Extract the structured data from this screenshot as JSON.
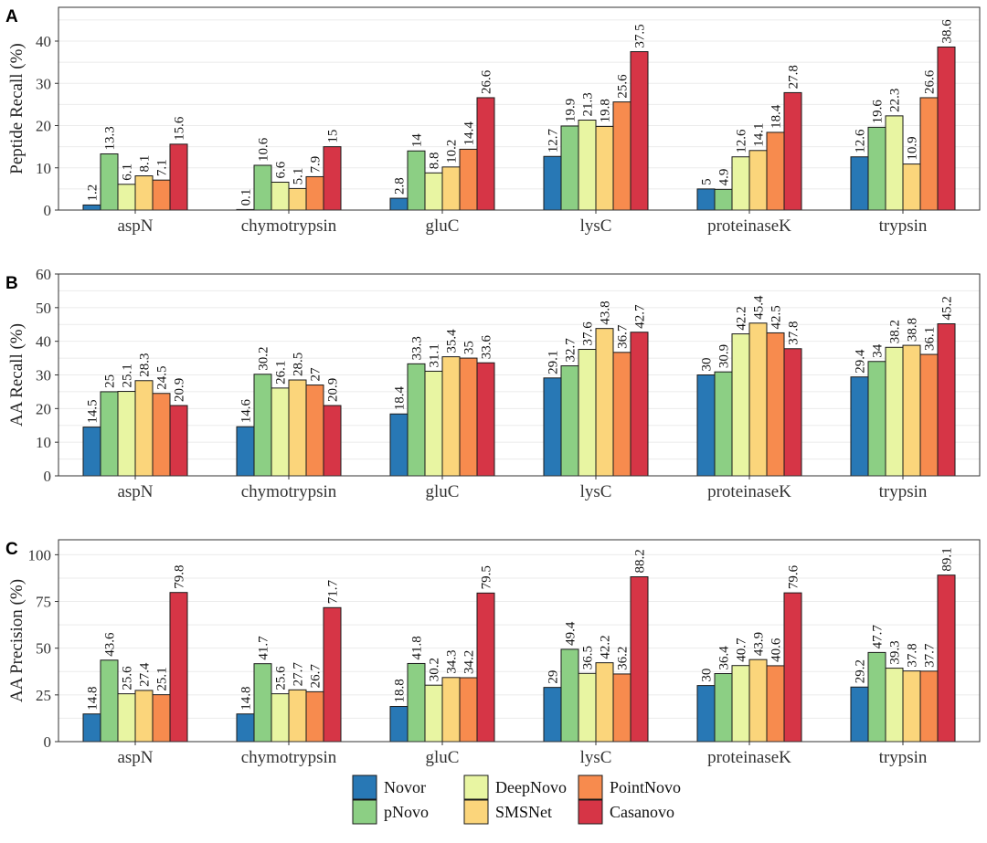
{
  "colors": {
    "Novor": "#2878b5",
    "pNovo": "#8ccf84",
    "DeepNovo": "#e8f5a2",
    "SMSNet": "#fbd57b",
    "PointNovo": "#f78b4e",
    "Casanovo": "#d63546"
  },
  "legend": {
    "items": [
      "Novor",
      "DeepNovo",
      "PointNovo",
      "pNovo",
      "SMSNet",
      "Casanovo"
    ]
  },
  "chart_data": [
    {
      "type": "bar",
      "panel": "A",
      "ylabel": "Peptide Recall (%)",
      "ylim": [
        0,
        48
      ],
      "yticks": [
        0,
        10,
        20,
        30,
        40
      ],
      "categories": [
        "aspN",
        "chymotrypsin",
        "gluC",
        "lysC",
        "proteinaseK",
        "trypsin"
      ],
      "series": [
        {
          "name": "Novor",
          "values": [
            1.2,
            0.1,
            2.8,
            12.7,
            5,
            12.6
          ]
        },
        {
          "name": "pNovo",
          "values": [
            13.3,
            10.6,
            14,
            19.9,
            4.9,
            19.6
          ]
        },
        {
          "name": "DeepNovo",
          "values": [
            6.1,
            6.6,
            8.8,
            21.3,
            12.6,
            22.3
          ]
        },
        {
          "name": "SMSNet",
          "values": [
            8.1,
            5.1,
            10.2,
            19.8,
            14.1,
            10.9
          ]
        },
        {
          "name": "PointNovo",
          "values": [
            7.1,
            7.9,
            14.4,
            25.6,
            18.4,
            26.6
          ]
        },
        {
          "name": "Casanovo",
          "values": [
            15.6,
            15,
            26.6,
            37.5,
            27.8,
            38.6
          ]
        }
      ]
    },
    {
      "type": "bar",
      "panel": "B",
      "ylabel": "AA Recall (%)",
      "ylim": [
        0,
        60
      ],
      "yticks": [
        0,
        10,
        20,
        30,
        40,
        50,
        60
      ],
      "categories": [
        "aspN",
        "chymotrypsin",
        "gluC",
        "lysC",
        "proteinaseK",
        "trypsin"
      ],
      "series": [
        {
          "name": "Novor",
          "values": [
            14.5,
            14.6,
            18.4,
            29.1,
            30,
            29.4
          ]
        },
        {
          "name": "pNovo",
          "values": [
            25,
            30.2,
            33.3,
            32.7,
            30.9,
            34
          ]
        },
        {
          "name": "DeepNovo",
          "values": [
            25.1,
            26.1,
            31.1,
            37.6,
            42.2,
            38.2
          ]
        },
        {
          "name": "SMSNet",
          "values": [
            28.3,
            28.5,
            35.4,
            43.8,
            45.4,
            38.8
          ]
        },
        {
          "name": "PointNovo",
          "values": [
            24.5,
            27,
            35,
            36.7,
            42.5,
            36.1
          ]
        },
        {
          "name": "Casanovo",
          "values": [
            20.9,
            20.9,
            33.6,
            42.7,
            37.8,
            45.2
          ]
        }
      ]
    },
    {
      "type": "bar",
      "panel": "C",
      "ylabel": "AA Precision (%)",
      "ylim": [
        0,
        108
      ],
      "yticks": [
        0,
        25,
        50,
        75,
        100
      ],
      "categories": [
        "aspN",
        "chymotrypsin",
        "gluC",
        "lysC",
        "proteinaseK",
        "trypsin"
      ],
      "series": [
        {
          "name": "Novor",
          "values": [
            14.8,
            14.8,
            18.8,
            29,
            30,
            29.2
          ]
        },
        {
          "name": "pNovo",
          "values": [
            43.6,
            41.7,
            41.8,
            49.4,
            36.4,
            47.7
          ]
        },
        {
          "name": "DeepNovo",
          "values": [
            25.6,
            25.6,
            30.2,
            36.5,
            40.7,
            39.3
          ]
        },
        {
          "name": "SMSNet",
          "values": [
            27.4,
            27.7,
            34.3,
            42.2,
            43.9,
            37.8
          ]
        },
        {
          "name": "PointNovo",
          "values": [
            25.1,
            26.7,
            34.2,
            36.2,
            40.6,
            37.7
          ]
        },
        {
          "name": "Casanovo",
          "values": [
            79.8,
            71.7,
            79.5,
            88.2,
            79.6,
            89.1
          ]
        }
      ]
    }
  ]
}
